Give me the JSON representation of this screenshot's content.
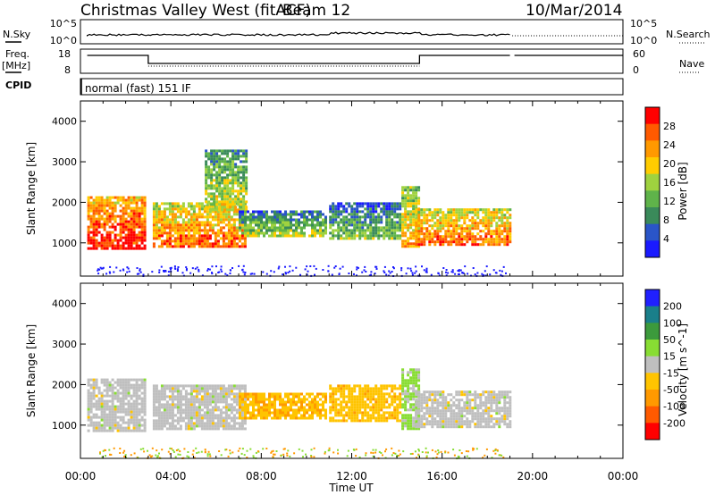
{
  "header": {
    "station": "Christmas Valley West (fitACF)",
    "beam": "Beam 12",
    "date": "10/Mar/2014"
  },
  "strip_labels": {
    "nsky": "N.Sky",
    "nsearch": "N.Search",
    "freq": "Freq.",
    "freq_unit": "[MHz]",
    "nave": "Nave",
    "cpid": "CPID",
    "mode": "normal (fast) 151 IF"
  },
  "noise_axis_ticks": [
    "10^5",
    "10^0"
  ],
  "freq_axis_ticks": [
    "18",
    "8"
  ],
  "nave_axis_ticks": [
    "60",
    "0"
  ],
  "colors": {
    "power_scale": [
      "#1a1aff",
      "#2a55c8",
      "#3a8a5a",
      "#5fb34a",
      "#9fd23f",
      "#ffcc00",
      "#ff9900",
      "#ff5a00",
      "#ff0000"
    ],
    "velocity_scale": [
      "#2020ff",
      "#1a7f8a",
      "#3c9a3c",
      "#88dd33",
      "#bfbfbf",
      "#ffc400",
      "#ff9900",
      "#ff5a00",
      "#ff0000"
    ]
  },
  "chart_data": [
    {
      "type": "heatmap",
      "title": "Power",
      "ylabel": "Slant Range [km]",
      "xlabel": "Time UT",
      "x_ticks": [
        "00:00",
        "04:00",
        "08:00",
        "12:00",
        "16:00",
        "20:00",
        "00:00"
      ],
      "y_ticks": [
        1000,
        2000,
        3000,
        4000
      ],
      "ylim": [
        180,
        4500
      ],
      "xlim_hours": [
        0,
        24
      ],
      "colorbar": {
        "label": "Power [dB]",
        "ticks": [
          4,
          8,
          12,
          16,
          20,
          24,
          28
        ],
        "range": [
          0,
          32
        ]
      },
      "regions": [
        {
          "name": "early-band",
          "t": [
            0.3,
            2.9
          ],
          "r": [
            850,
            2150
          ],
          "level": 26
        },
        {
          "name": "morning-band",
          "t": [
            3.2,
            7.3
          ],
          "r": [
            900,
            2000
          ],
          "level": 22
        },
        {
          "name": "rising-arc",
          "t": [
            5.5,
            7.3
          ],
          "r": [
            1800,
            3300
          ],
          "level": 14
        },
        {
          "name": "midday-patch",
          "t": [
            7.0,
            10.8
          ],
          "r": [
            1200,
            1800
          ],
          "level": 12
        },
        {
          "name": "afternoon-band",
          "t": [
            11.0,
            14.2
          ],
          "r": [
            1100,
            2000
          ],
          "level": 10
        },
        {
          "name": "sunset-spike",
          "t": [
            14.2,
            15.0
          ],
          "r": [
            900,
            2400
          ],
          "level": 18
        },
        {
          "name": "evening-band",
          "t": [
            14.8,
            19.0
          ],
          "r": [
            950,
            1850
          ],
          "level": 22
        }
      ]
    },
    {
      "type": "heatmap",
      "title": "Velocity",
      "ylabel": "Slant Range [km]",
      "xlabel": "Time UT",
      "x_ticks": [
        "00:00",
        "04:00",
        "08:00",
        "12:00",
        "16:00",
        "20:00",
        "00:00"
      ],
      "y_ticks": [
        1000,
        2000,
        3000,
        4000
      ],
      "ylim": [
        180,
        4500
      ],
      "xlim_hours": [
        0,
        24
      ],
      "colorbar": {
        "label": "Velocity [m s^-1]",
        "ticks": [
          200,
          100,
          50,
          15,
          -15,
          -50,
          -100,
          -200
        ],
        "range": [
          -250,
          250
        ]
      },
      "regions": [
        {
          "name": "early-band",
          "t": [
            0.3,
            2.9
          ],
          "r": [
            850,
            2150
          ],
          "level": 0
        },
        {
          "name": "morning-band",
          "t": [
            3.2,
            7.3
          ],
          "r": [
            900,
            2000
          ],
          "level": 0
        },
        {
          "name": "midday-patch",
          "t": [
            7.0,
            10.8
          ],
          "r": [
            1200,
            1800
          ],
          "level": -70
        },
        {
          "name": "afternoon-band",
          "t": [
            11.0,
            14.2
          ],
          "r": [
            1100,
            2000
          ],
          "level": -60
        },
        {
          "name": "sunset-spike",
          "t": [
            14.2,
            15.0
          ],
          "r": [
            900,
            2400
          ],
          "level": 40
        },
        {
          "name": "evening-band",
          "t": [
            14.8,
            19.0
          ],
          "r": [
            950,
            1850
          ],
          "level": 0
        }
      ]
    }
  ]
}
